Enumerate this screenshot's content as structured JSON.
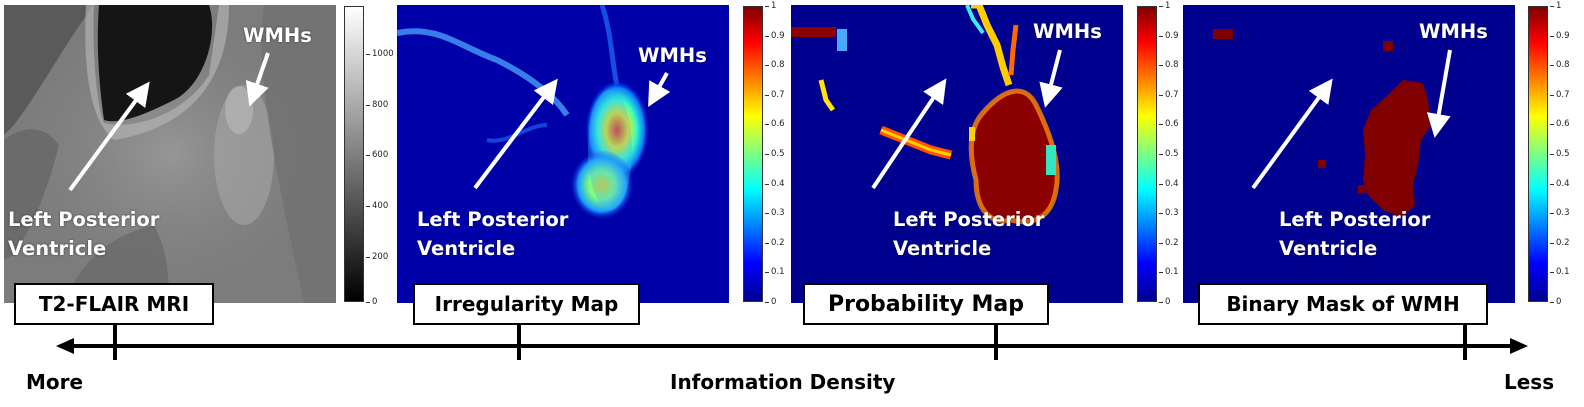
{
  "panels": [
    {
      "label": "T2-FLAIR MRI",
      "annotation_wmh": "WMHs",
      "annotation_ventricle_line1": "Left Posterior",
      "annotation_ventricle_line2": "Ventricle",
      "colorbar": {
        "colormap": "gray",
        "ticks": [
          "1000",
          "800",
          "600",
          "400",
          "200",
          "0"
        ]
      }
    },
    {
      "label": "Irregularity Map",
      "annotation_wmh": "WMHs",
      "annotation_ventricle_line1": "Left Posterior",
      "annotation_ventricle_line2": "Ventricle",
      "colorbar": {
        "colormap": "jet",
        "ticks": [
          "1",
          "0.9",
          "0.8",
          "0.7",
          "0.6",
          "0.5",
          "0.4",
          "0.3",
          "0.2",
          "0.1",
          "0"
        ]
      }
    },
    {
      "label": "Probability Map",
      "annotation_wmh": "WMHs",
      "annotation_ventricle_line1": "Left Posterior",
      "annotation_ventricle_line2": "Ventricle",
      "colorbar": {
        "colormap": "jet",
        "ticks": [
          "1",
          "0.9",
          "0.8",
          "0.7",
          "0.6",
          "0.5",
          "0.4",
          "0.3",
          "0.2",
          "0.1",
          "0"
        ]
      }
    },
    {
      "label": "Binary Mask of WMH",
      "annotation_wmh": "WMHs",
      "annotation_ventricle_line1": "Left Posterior",
      "annotation_ventricle_line2": "Ventricle",
      "colorbar": {
        "colormap": "jet",
        "ticks": [
          "1",
          "0.9",
          "0.8",
          "0.7",
          "0.6",
          "0.5",
          "0.4",
          "0.3",
          "0.2",
          "0.1",
          "0"
        ]
      }
    }
  ],
  "axis": {
    "left_label": "More",
    "center_label": "Information Density",
    "right_label": "Less"
  },
  "colors": {
    "jet_background": "#00008f",
    "jet_high": "#800000",
    "arrow": "#ffffff",
    "axis": "#000000"
  }
}
